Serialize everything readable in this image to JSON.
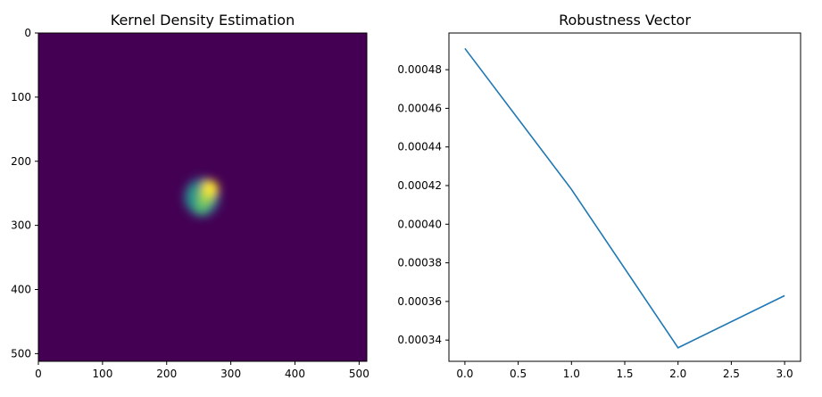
{
  "chart_data": [
    {
      "type": "heatmap",
      "title": "Kernel Density Estimation",
      "xlabel": "",
      "ylabel": "",
      "xlim": [
        0,
        512
      ],
      "ylim": [
        512,
        0
      ],
      "xticks": [
        0,
        100,
        200,
        300,
        400,
        500
      ],
      "yticks": [
        0,
        100,
        200,
        300,
        400,
        500
      ],
      "colormap": "viridis",
      "background_color": "#440154",
      "peaks": [
        {
          "x": 268,
          "y": 242,
          "intensity": 1.0
        },
        {
          "x": 262,
          "y": 256,
          "intensity": 0.85
        },
        {
          "x": 255,
          "y": 270,
          "intensity": 0.7
        },
        {
          "x": 245,
          "y": 248,
          "intensity": 0.55
        },
        {
          "x": 240,
          "y": 262,
          "intensity": 0.5
        }
      ]
    },
    {
      "type": "line",
      "title": "Robustness Vector",
      "xlabel": "",
      "ylabel": "",
      "x": [
        0,
        1,
        2,
        3
      ],
      "series": [
        {
          "values": [
            0.000491,
            0.000418,
            0.000336,
            0.000363
          ],
          "color": "#1f77b4"
        }
      ],
      "xlim": [
        -0.15,
        3.15
      ],
      "ylim": [
        0.000329,
        0.000499
      ],
      "xticks": [
        0.0,
        0.5,
        1.0,
        1.5,
        2.0,
        2.5,
        3.0
      ],
      "xtick_labels": [
        "0.0",
        "0.5",
        "1.0",
        "1.5",
        "2.0",
        "2.5",
        "3.0"
      ],
      "yticks": [
        0.00034,
        0.00036,
        0.00038,
        0.0004,
        0.00042,
        0.00044,
        0.00046,
        0.00048
      ],
      "ytick_labels": [
        "0.00034",
        "0.00036",
        "0.00038",
        "0.00040",
        "0.00042",
        "0.00044",
        "0.00046",
        "0.00048"
      ]
    }
  ]
}
